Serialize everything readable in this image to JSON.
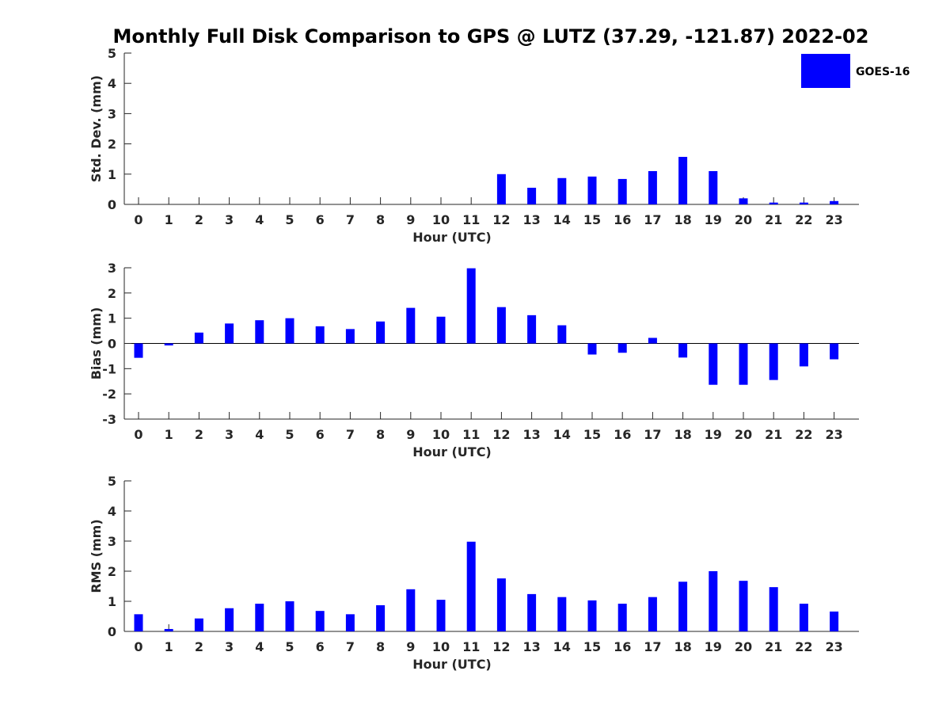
{
  "figure": {
    "title": "Monthly Full Disk Comparison to GPS @ LUTZ (37.29, -121.87) 2022-02",
    "legend": {
      "label": "GOES-16",
      "color": "#0000ff",
      "placement": "top-right"
    }
  },
  "chart_data": [
    {
      "type": "bar",
      "title": "",
      "xlabel": "Hour (UTC)",
      "ylabel": "Std. Dev. (mm)",
      "ylim": [
        0,
        5
      ],
      "yticks": [
        0,
        1,
        2,
        3,
        4,
        5
      ],
      "categories": [
        "0",
        "1",
        "2",
        "3",
        "4",
        "5",
        "6",
        "7",
        "8",
        "9",
        "10",
        "11",
        "12",
        "13",
        "14",
        "15",
        "16",
        "17",
        "18",
        "19",
        "20",
        "21",
        "22",
        "23"
      ],
      "series": [
        {
          "name": "GOES-16",
          "color": "#0000ff",
          "values": [
            0,
            0,
            0,
            0,
            0,
            0,
            0,
            0,
            0,
            0,
            0,
            0,
            1.0,
            0.55,
            0.87,
            0.92,
            0.84,
            1.1,
            1.57,
            1.1,
            0.2,
            0.06,
            0.06,
            0.11
          ]
        }
      ],
      "grid": false
    },
    {
      "type": "bar",
      "title": "",
      "xlabel": "Hour (UTC)",
      "ylabel": "Bias (mm)",
      "ylim": [
        -3,
        3
      ],
      "yticks": [
        -3,
        -2,
        -1,
        0,
        1,
        2,
        3
      ],
      "categories": [
        "0",
        "1",
        "2",
        "3",
        "4",
        "5",
        "6",
        "7",
        "8",
        "9",
        "10",
        "11",
        "12",
        "13",
        "14",
        "15",
        "16",
        "17",
        "18",
        "19",
        "20",
        "21",
        "22",
        "23"
      ],
      "series": [
        {
          "name": "GOES-16",
          "color": "#0000ff",
          "values": [
            -0.57,
            -0.08,
            0.43,
            0.79,
            0.92,
            1.0,
            0.68,
            0.57,
            0.87,
            1.41,
            1.06,
            2.98,
            1.44,
            1.12,
            0.72,
            -0.44,
            -0.37,
            0.22,
            -0.56,
            -1.64,
            -1.64,
            -1.45,
            -0.91,
            -0.63
          ]
        }
      ],
      "grid": false
    },
    {
      "type": "bar",
      "title": "",
      "xlabel": "Hour (UTC)",
      "ylabel": "RMS (mm)",
      "ylim": [
        0,
        5
      ],
      "yticks": [
        0,
        1,
        2,
        3,
        4,
        5
      ],
      "categories": [
        "0",
        "1",
        "2",
        "3",
        "4",
        "5",
        "6",
        "7",
        "8",
        "9",
        "10",
        "11",
        "12",
        "13",
        "14",
        "15",
        "16",
        "17",
        "18",
        "19",
        "20",
        "21",
        "22",
        "23"
      ],
      "series": [
        {
          "name": "GOES-16",
          "color": "#0000ff",
          "values": [
            0.57,
            0.08,
            0.43,
            0.77,
            0.92,
            1.0,
            0.68,
            0.57,
            0.87,
            1.4,
            1.05,
            2.98,
            1.76,
            1.24,
            1.14,
            1.03,
            0.92,
            1.14,
            1.65,
            2.0,
            1.68,
            1.47,
            0.92,
            0.66
          ]
        }
      ],
      "grid": false
    }
  ]
}
